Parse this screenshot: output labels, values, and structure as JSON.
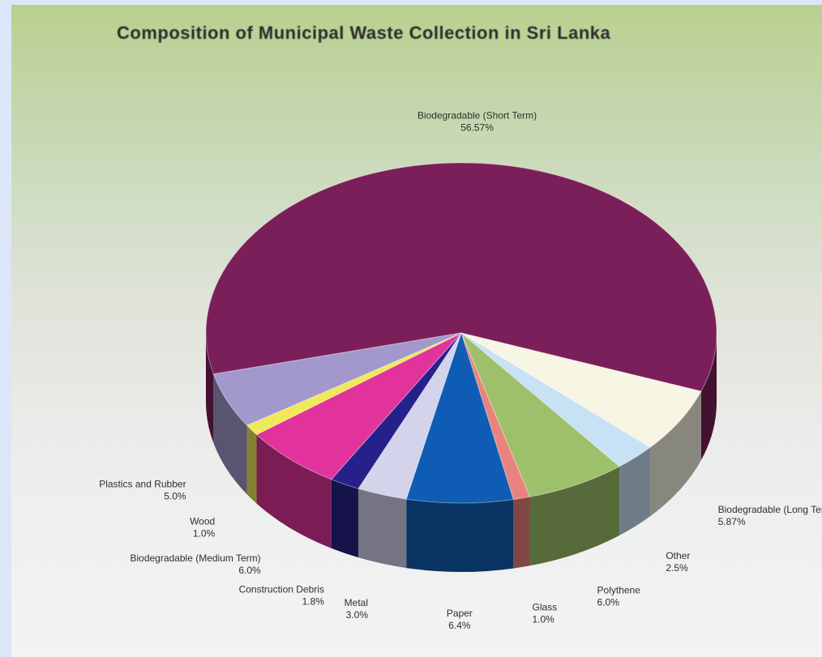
{
  "chart_data": {
    "type": "pie",
    "title": "Composition of Municipal Waste Collection in Sri Lanka",
    "slices": [
      {
        "label": "Biodegradable (Short Term)",
        "value": 56.57,
        "display": "56.57%",
        "color": "#7b1f5a"
      },
      {
        "label": "Biodegradable (Long Term)",
        "value": 5.87,
        "display": "5.87%",
        "color": "#f7f5e3"
      },
      {
        "label": "Other",
        "value": 2.5,
        "display": "2.5%",
        "color": "#c7e2f4"
      },
      {
        "label": "Polythene",
        "value": 6.0,
        "display": "6.0%",
        "color": "#9fc06a"
      },
      {
        "label": "Glass",
        "value": 1.0,
        "display": "1.0%",
        "color": "#e9837e"
      },
      {
        "label": "Paper",
        "value": 6.4,
        "display": "6.4%",
        "color": "#0e5cb3"
      },
      {
        "label": "Metal",
        "value": 3.0,
        "display": "3.0%",
        "color": "#d3d3ec"
      },
      {
        "label": "Construction Debris",
        "value": 1.8,
        "display": "1.8%",
        "color": "#26218a"
      },
      {
        "label": "Biodegradable (Medium Term)",
        "value": 6.0,
        "display": "6.0%",
        "color": "#e2329b"
      },
      {
        "label": "Wood",
        "value": 1.0,
        "display": "1.0%",
        "color": "#f0e95a"
      },
      {
        "label": "Plastics and Rubber",
        "value": 5.0,
        "display": "5.0%",
        "color": "#a298cc"
      }
    ]
  }
}
